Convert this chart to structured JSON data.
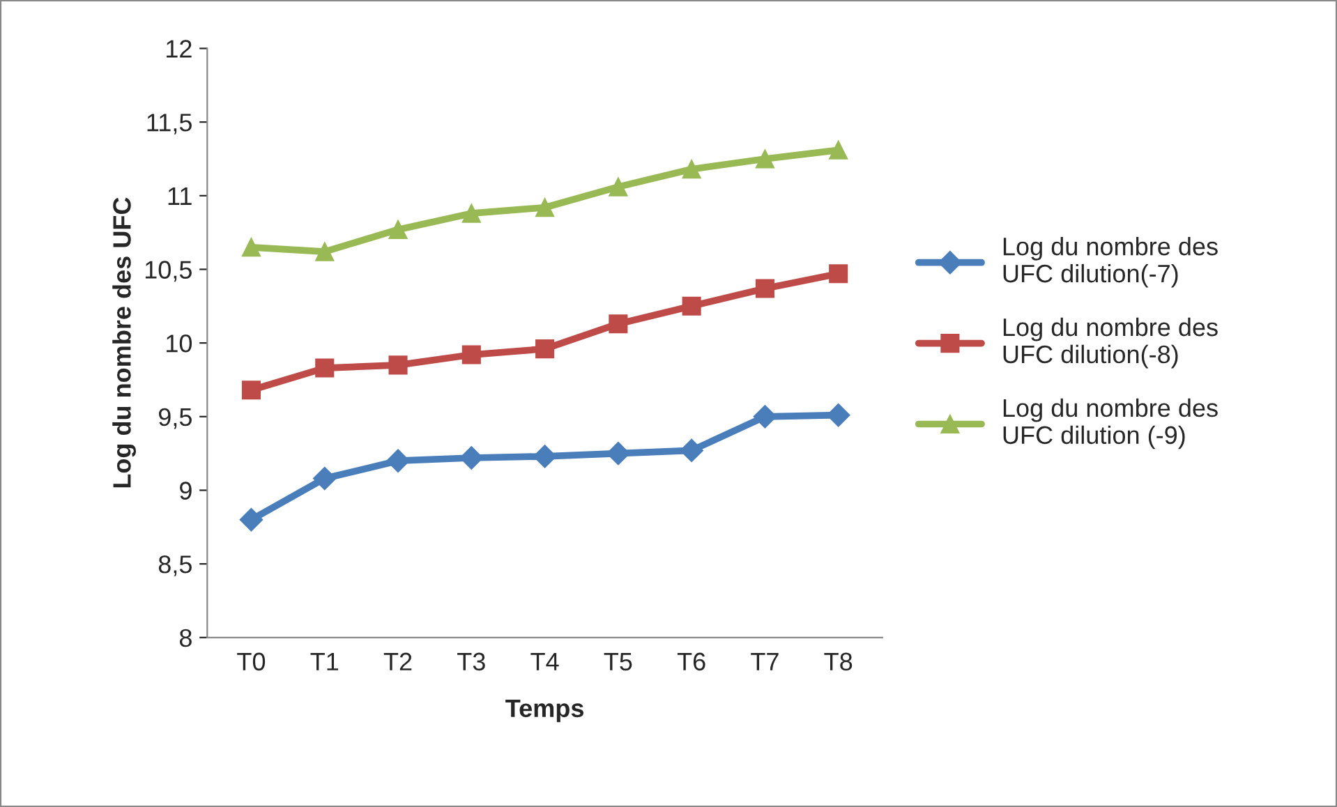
{
  "chart_data": {
    "type": "line",
    "xlabel": "Temps",
    "ylabel": "Log du nombre des UFC",
    "categories": [
      "T0",
      "T1",
      "T2",
      "T3",
      "T4",
      "T5",
      "T6",
      "T7",
      "T8"
    ],
    "series": [
      {
        "name": "Log du nombre des\nUFC dilution(-7)",
        "color": "#4a7ebb",
        "marker": "diamond",
        "values": [
          8.8,
          9.08,
          9.2,
          9.22,
          9.23,
          9.25,
          9.27,
          9.5,
          9.51
        ]
      },
      {
        "name": "Log du nombre des\nUFC dilution(-8)",
        "color": "#be4b48",
        "marker": "square",
        "values": [
          9.68,
          9.83,
          9.85,
          9.92,
          9.96,
          10.13,
          10.25,
          10.37,
          10.47
        ]
      },
      {
        "name": "Log du nombre des\nUFC dilution (-9)",
        "color": "#98b954",
        "marker": "triangle",
        "values": [
          10.65,
          10.62,
          10.77,
          10.88,
          10.92,
          11.06,
          11.18,
          11.25,
          11.31
        ]
      }
    ],
    "ylim": [
      8,
      12
    ],
    "yticks": [
      8,
      {
        "value": 8.5,
        "label": "8,5"
      },
      9,
      {
        "value": 9.5,
        "label": "9,5"
      },
      10,
      {
        "value": 10.5,
        "label": "10,5"
      },
      11,
      {
        "value": 11.5,
        "label": "11,5"
      },
      12
    ],
    "grid": false,
    "legend": "right",
    "line_style": "solid"
  }
}
